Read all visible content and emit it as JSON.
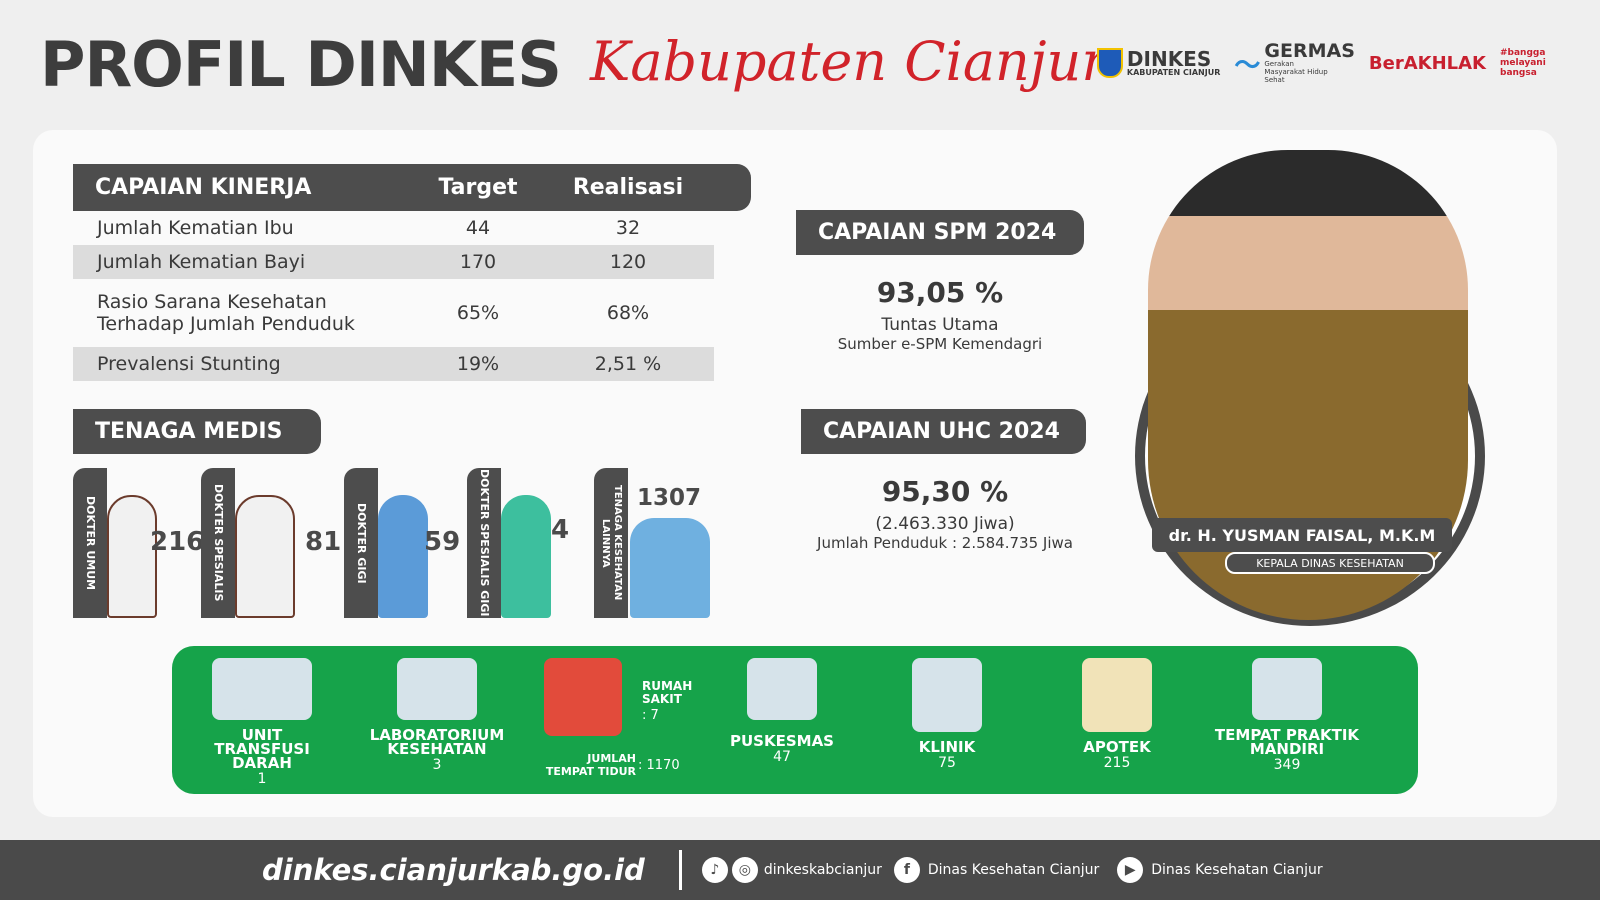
{
  "header": {
    "title": "PROFIL DINKES",
    "subtitle": "Kabupaten Cianjur",
    "logos": {
      "dinkes": "DINKES",
      "dinkes_sub": "KABUPATEN CIANJUR",
      "germas": "GERMAS",
      "germas_sub": "Gerakan Masyarakat Hidup Sehat",
      "berakhlak": "BerAKHLAK",
      "bangga": "#bangga melayani bangsa"
    }
  },
  "kinerja": {
    "headers": [
      "CAPAIAN KINERJA",
      "Target",
      "Realisasi"
    ],
    "rows": [
      [
        "Jumlah Kematian Ibu",
        "44",
        "32"
      ],
      [
        "Jumlah Kematian Bayi",
        "170",
        "120"
      ],
      [
        "Rasio Sarana Kesehatan Terhadap Jumlah Penduduk",
        "65%",
        "68%"
      ],
      [
        "Prevalensi Stunting",
        "19%",
        "2,51 %"
      ]
    ]
  },
  "spm": {
    "title": "CAPAIAN SPM 2024",
    "value": "93,05 %",
    "status": "Tuntas Utama",
    "source": "Sumber e-SPM Kemendagri"
  },
  "uhc": {
    "title": "CAPAIAN UHC 2024",
    "value": "95,30 %",
    "jiwa": "(2.463.330 Jiwa)",
    "penduduk": "Jumlah Penduduk : 2.584.735 Jiwa"
  },
  "tenaga": {
    "title": "TENAGA MEDIS",
    "items": [
      {
        "label": "DOKTER UMUM",
        "value": "216"
      },
      {
        "label": "DOKTER SPESIALIS",
        "value": "81"
      },
      {
        "label": "DOKTER GIGI",
        "value": "59"
      },
      {
        "label": "DOKTER SPESIALIS GIGI",
        "value": "4"
      },
      {
        "label": "TENAGA KESEHATAN LAINNYA",
        "value": "1307"
      }
    ]
  },
  "official": {
    "name": "dr. H. YUSMAN FAISAL, M.K.M",
    "position": "KEPALA DINAS KESEHATAN"
  },
  "fasilitas": {
    "utd": {
      "label": "UNIT TRANSFUSI DARAH",
      "value": "1"
    },
    "lab": {
      "label": "LABORATORIUM KESEHATAN",
      "value": "3"
    },
    "rs": {
      "label": "RUMAH SAKIT",
      "value": ": 7",
      "bed_label": "JUMLAH TEMPAT TIDUR",
      "bed_value": ": 1170"
    },
    "puskesmas": {
      "label": "PUSKESMAS",
      "value": "47"
    },
    "klinik": {
      "label": "KLINIK",
      "value": "75"
    },
    "apotek": {
      "label": "APOTEK",
      "value": "215"
    },
    "tpm": {
      "label": "TEMPAT PRAKTIK MANDIRI",
      "value": "349"
    }
  },
  "footer": {
    "website": "dinkes.cianjurkab.go.id",
    "social": "dinkeskabcianjur",
    "facebook": "Dinas Kesehatan Cianjur",
    "youtube": "Dinas Kesehatan Cianjur"
  },
  "colors": {
    "dark": "#4d4d4d",
    "green": "#16a34a",
    "red": "#d1232a"
  }
}
